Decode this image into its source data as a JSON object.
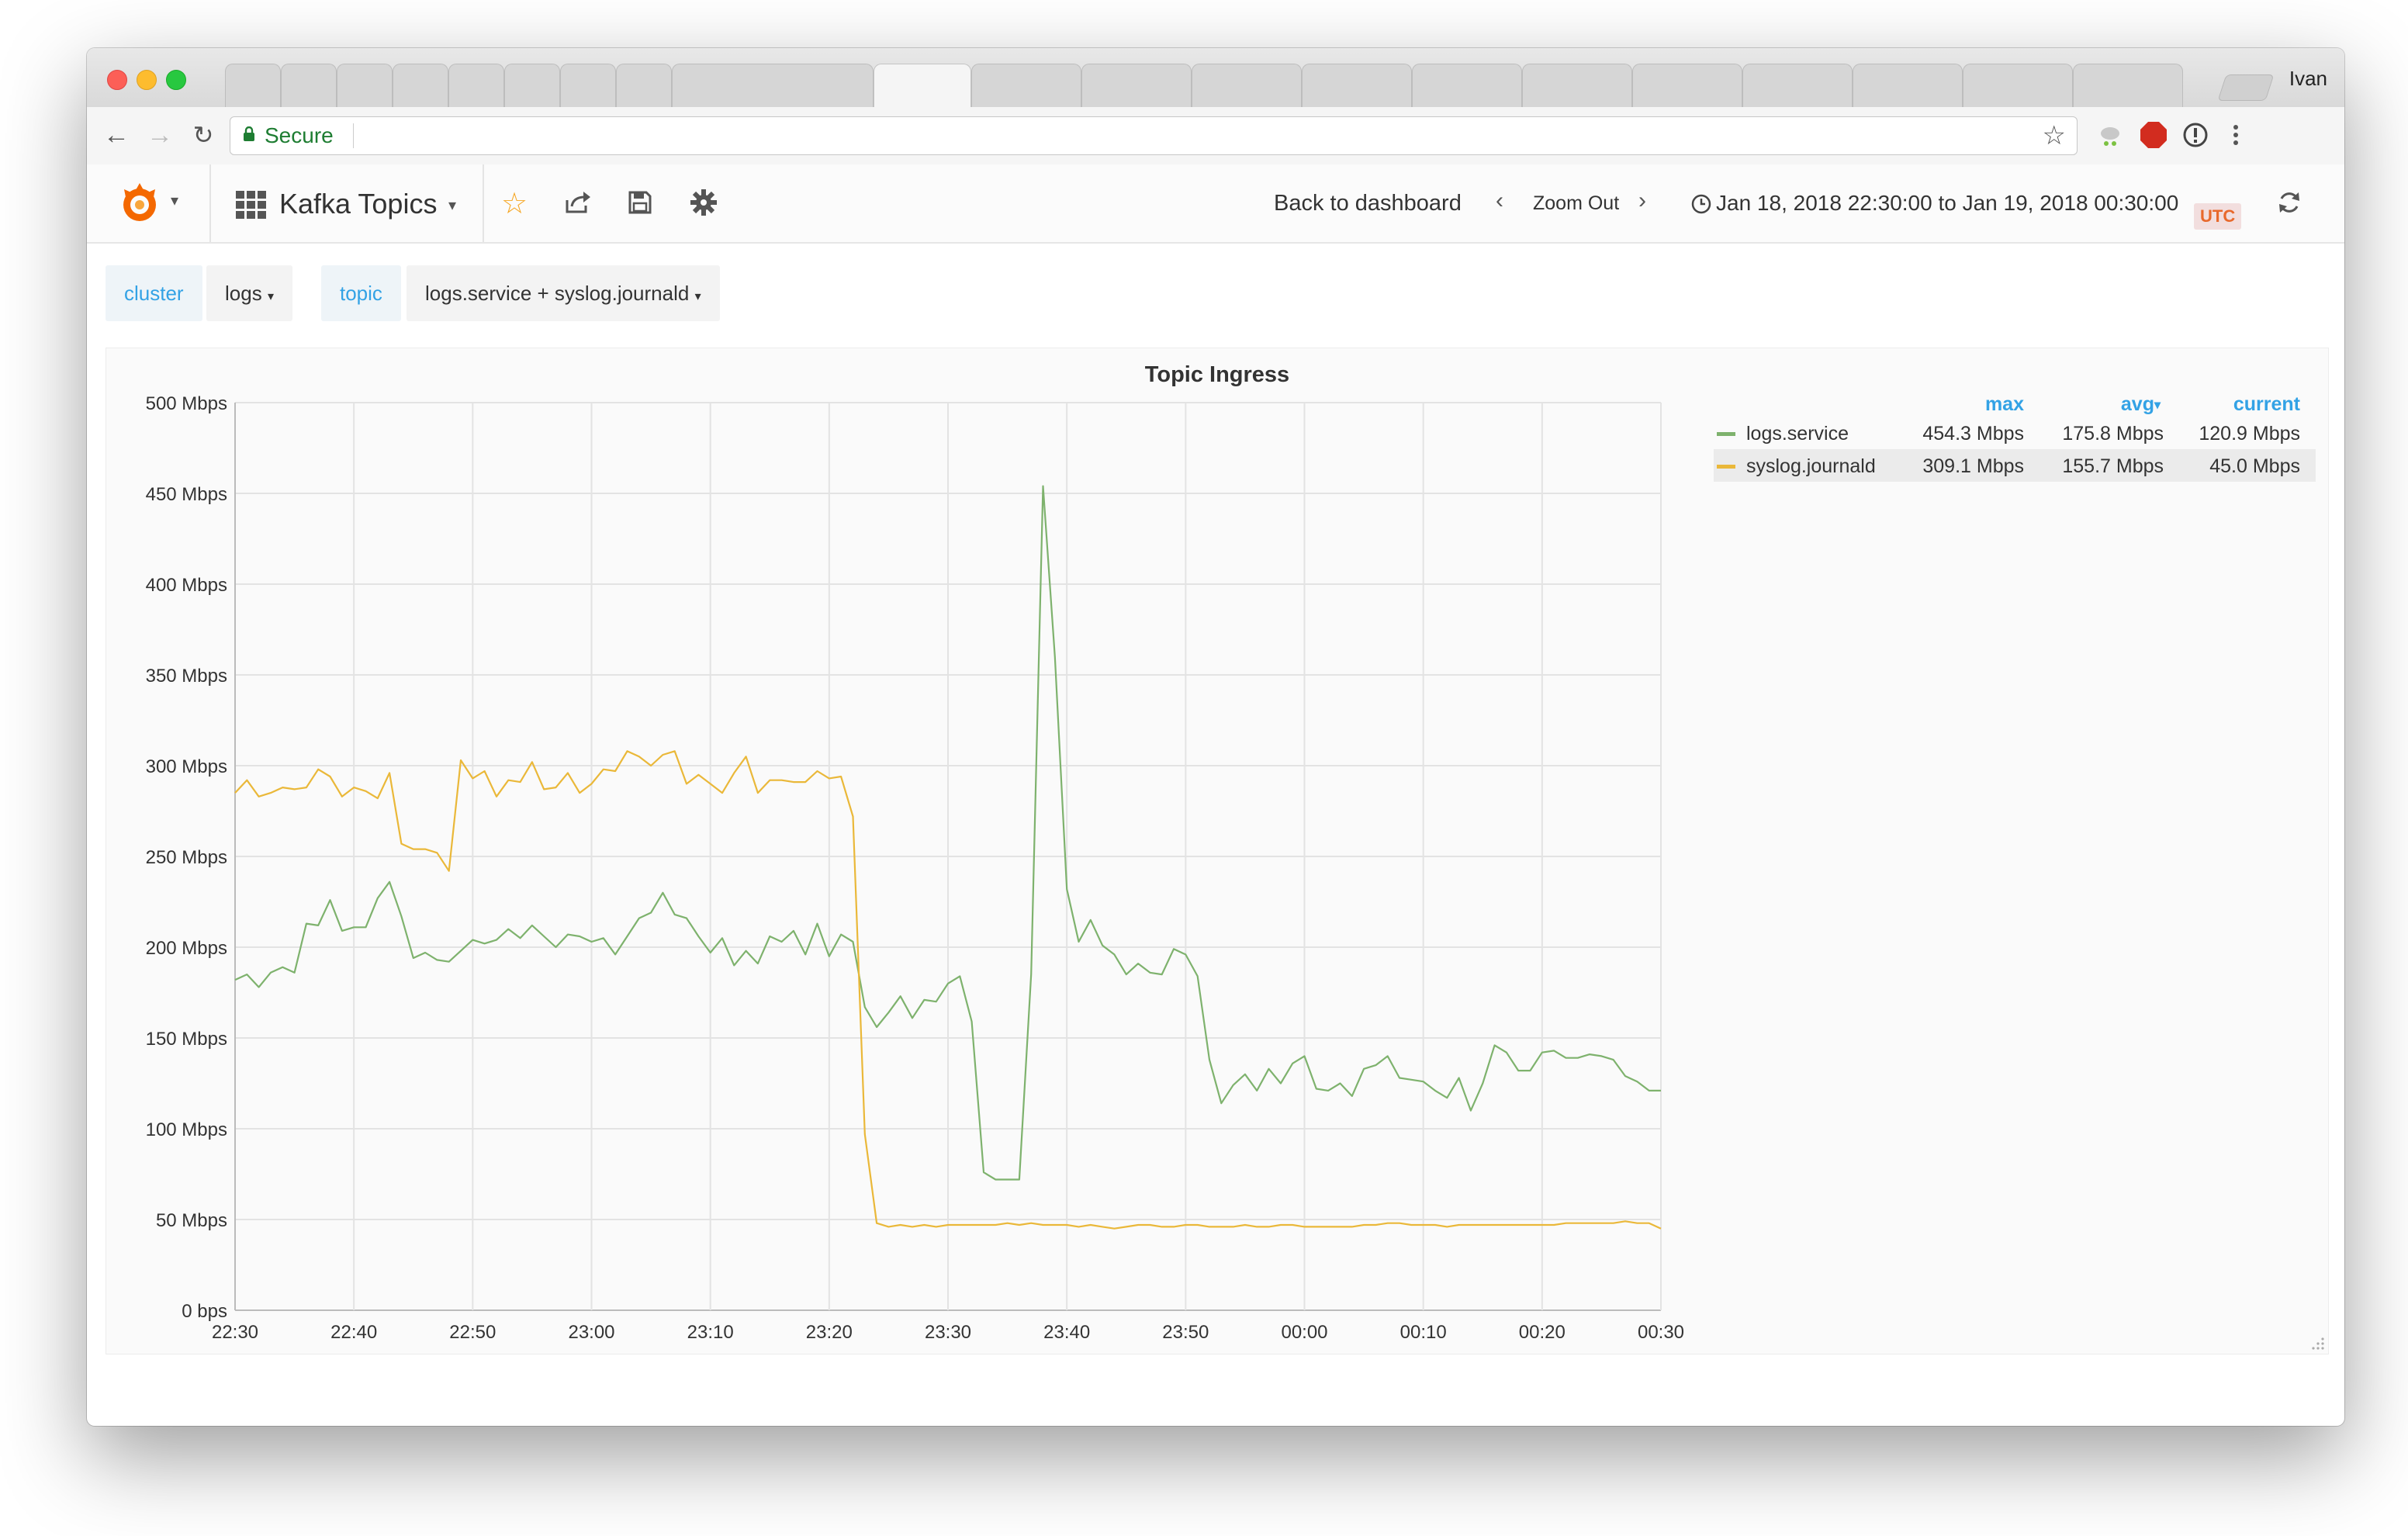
{
  "browser": {
    "profile_name": "Ivan",
    "secure_label": "Secure"
  },
  "nav": {
    "dashboard_title": "Kafka Topics",
    "back_to_dashboard": "Back to dashboard",
    "zoom_out": "Zoom Out",
    "time_range": "Jan 18, 2018 22:30:00 to Jan 19, 2018 00:30:00",
    "timezone": "UTC"
  },
  "variables": [
    {
      "label": "cluster",
      "value": "logs"
    },
    {
      "label": "topic",
      "value": "logs.service + syslog.journald"
    }
  ],
  "legend": {
    "columns": [
      "max",
      "avg",
      "current"
    ],
    "rows": [
      {
        "name": "logs.service",
        "max": "454.3 Mbps",
        "avg": "175.8 Mbps",
        "current": "120.9 Mbps"
      },
      {
        "name": "syslog.journald",
        "max": "309.1 Mbps",
        "avg": "155.7 Mbps",
        "current": "45.0 Mbps"
      }
    ]
  },
  "chart_data": {
    "type": "line",
    "title": "Topic Ingress",
    "xlabel": "",
    "ylabel": "",
    "x_tick_labels": [
      "22:30",
      "22:40",
      "22:50",
      "23:00",
      "23:10",
      "23:20",
      "23:30",
      "23:40",
      "23:50",
      "00:00",
      "00:10",
      "00:20",
      "00:30"
    ],
    "y_tick_labels": [
      "0 bps",
      "50 Mbps",
      "100 Mbps",
      "150 Mbps",
      "200 Mbps",
      "250 Mbps",
      "300 Mbps",
      "350 Mbps",
      "400 Mbps",
      "450 Mbps",
      "500 Mbps"
    ],
    "xlim_minutes": [
      0,
      120
    ],
    "ylim_mbps": [
      0,
      500
    ],
    "grid": true,
    "legend_position": "right",
    "series": [
      {
        "name": "logs.service",
        "color": "#7eb26d",
        "x_minutes": [
          0,
          1,
          2,
          3,
          4,
          5,
          6,
          7,
          8,
          9,
          10,
          11,
          12,
          13,
          14,
          15,
          16,
          17,
          18,
          19,
          20,
          21,
          22,
          23,
          24,
          25,
          26,
          27,
          28,
          29,
          30,
          31,
          32,
          33,
          34,
          35,
          36,
          37,
          38,
          39,
          40,
          41,
          42,
          43,
          44,
          45,
          46,
          47,
          48,
          49,
          50,
          51,
          52,
          53,
          54,
          55,
          56,
          57,
          58,
          59,
          60,
          61,
          62,
          63,
          64,
          65,
          66,
          67,
          68,
          69,
          70,
          71,
          72,
          73,
          74,
          75,
          76,
          77,
          78,
          79,
          80,
          81,
          82,
          83,
          84,
          85,
          86,
          87,
          88,
          89,
          90,
          91,
          92,
          93,
          94,
          95,
          96,
          97,
          98,
          99,
          100,
          101,
          102,
          103,
          104,
          105,
          106,
          107,
          108,
          109,
          110,
          111,
          112,
          113,
          114,
          115,
          116,
          117,
          118,
          119,
          120
        ],
        "values": [
          182,
          185,
          178,
          186,
          189,
          186,
          213,
          212,
          226,
          209,
          211,
          211,
          227,
          236,
          217,
          194,
          197,
          193,
          192,
          198,
          204,
          202,
          204,
          210,
          205,
          212,
          206,
          200,
          207,
          206,
          203,
          205,
          196,
          206,
          216,
          219,
          230,
          218,
          216,
          206,
          197,
          205,
          190,
          198,
          191,
          206,
          203,
          209,
          196,
          213,
          195,
          207,
          203,
          167,
          156,
          164,
          173,
          161,
          171,
          170,
          180,
          184,
          159,
          76,
          72,
          72,
          72,
          185,
          454,
          360,
          232,
          203,
          215,
          201,
          196,
          185,
          191,
          186,
          185,
          199,
          196,
          184,
          138,
          114,
          124,
          130,
          121,
          133,
          125,
          136,
          140,
          122,
          121,
          125,
          118,
          133,
          135,
          140,
          128,
          127,
          126,
          121,
          117,
          128,
          110,
          125,
          146,
          142,
          132,
          132,
          142,
          143,
          139,
          139,
          141,
          140,
          138,
          129,
          126,
          121,
          121
        ]
      },
      {
        "name": "syslog.journald",
        "color": "#eab839",
        "x_minutes": [
          0,
          1,
          2,
          3,
          4,
          5,
          6,
          7,
          8,
          9,
          10,
          11,
          12,
          13,
          14,
          15,
          16,
          17,
          18,
          19,
          20,
          21,
          22,
          23,
          24,
          25,
          26,
          27,
          28,
          29,
          30,
          31,
          32,
          33,
          34,
          35,
          36,
          37,
          38,
          39,
          40,
          41,
          42,
          43,
          44,
          45,
          46,
          47,
          48,
          49,
          50,
          51,
          52,
          53,
          54,
          55,
          56,
          57,
          58,
          59,
          60,
          61,
          62,
          63,
          64,
          65,
          66,
          67,
          68,
          69,
          70,
          71,
          72,
          73,
          74,
          75,
          76,
          77,
          78,
          79,
          80,
          81,
          82,
          83,
          84,
          85,
          86,
          87,
          88,
          89,
          90,
          91,
          92,
          93,
          94,
          95,
          96,
          97,
          98,
          99,
          100,
          101,
          102,
          103,
          104,
          105,
          106,
          107,
          108,
          109,
          110,
          111,
          112,
          113,
          114,
          115,
          116,
          117,
          118,
          119,
          120
        ],
        "values": [
          285,
          292,
          283,
          285,
          288,
          287,
          288,
          298,
          294,
          283,
          288,
          286,
          282,
          296,
          257,
          254,
          254,
          252,
          242,
          303,
          293,
          297,
          283,
          292,
          291,
          302,
          287,
          288,
          296,
          285,
          290,
          298,
          297,
          308,
          305,
          300,
          306,
          308,
          290,
          295,
          290,
          285,
          296,
          305,
          285,
          292,
          292,
          291,
          291,
          297,
          293,
          294,
          272,
          97,
          48,
          46,
          47,
          46,
          47,
          46,
          47,
          47,
          47,
          47,
          47,
          48,
          47,
          48,
          47,
          47,
          47,
          46,
          47,
          46,
          45,
          46,
          47,
          47,
          46,
          46,
          47,
          47,
          46,
          46,
          46,
          47,
          46,
          46,
          47,
          47,
          46,
          46,
          46,
          46,
          46,
          47,
          47,
          48,
          48,
          47,
          47,
          47,
          46,
          47,
          47,
          47,
          47,
          47,
          47,
          47,
          47,
          47,
          48,
          48,
          48,
          48,
          48,
          49,
          48,
          48,
          45
        ]
      }
    ]
  }
}
